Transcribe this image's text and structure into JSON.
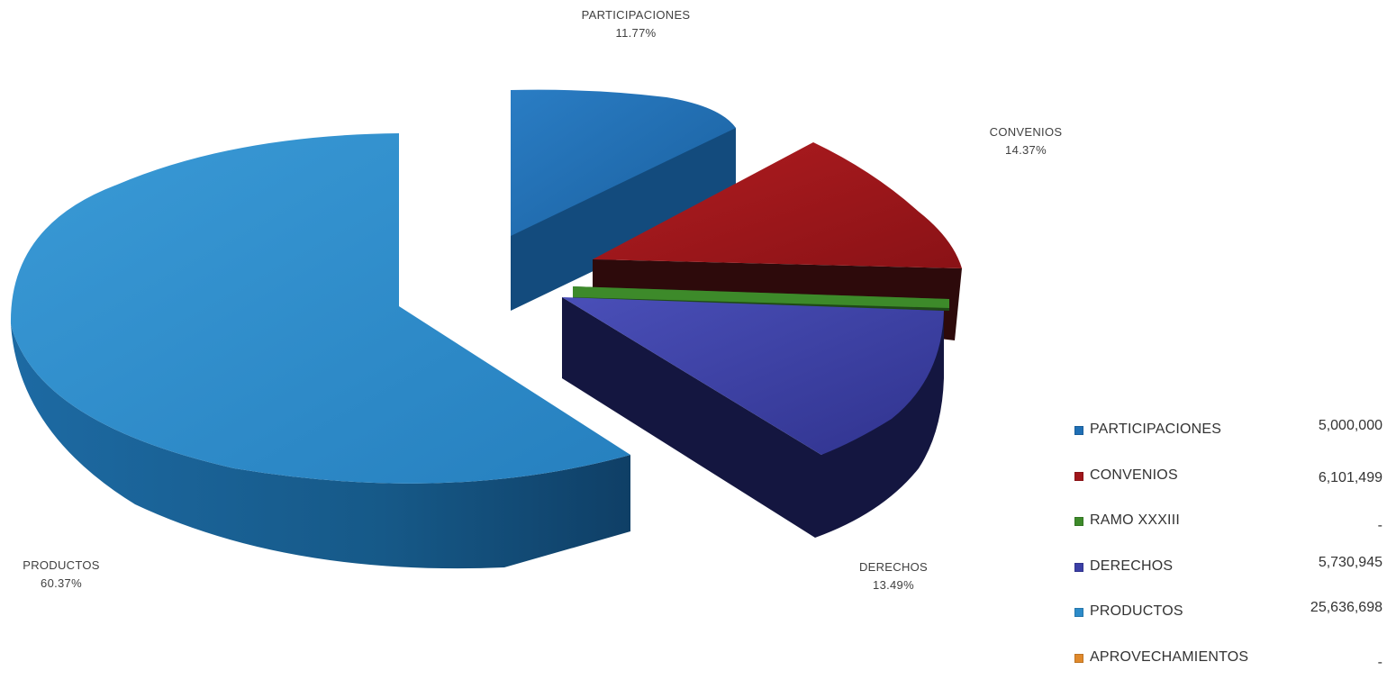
{
  "chart_data": {
    "type": "pie",
    "title": "",
    "slices": [
      {
        "label": "PARTICIPACIONES",
        "percent_label": "11.77%",
        "percent": 11.77,
        "value": 5000000,
        "value_label": "5,000,000",
        "color": "#1f6fb5"
      },
      {
        "label": "CONVENIOS",
        "percent_label": "14.37%",
        "percent": 14.37,
        "value": 6101499,
        "value_label": "6,101,499",
        "color": "#a0161b"
      },
      {
        "label": "RAMO XXXIII",
        "percent_label": "",
        "percent": 0.0,
        "value": null,
        "value_label": "-",
        "color": "#3d8a2a"
      },
      {
        "label": "DERECHOS",
        "percent_label": "13.49%",
        "percent": 13.49,
        "value": 5730945,
        "value_label": "5,730,945",
        "color": "#3b3fa6"
      },
      {
        "label": "PRODUCTOS",
        "percent_label": "60.37%",
        "percent": 60.37,
        "value": 25636698,
        "value_label": "25,636,698",
        "color": "#2d8bc9"
      },
      {
        "label": "APROVECHAMIENTOS",
        "percent_label": "",
        "percent": 0.0,
        "value": null,
        "value_label": "-",
        "color": "#e0892b"
      }
    ],
    "legend_position": "bottom-right",
    "exploded": true,
    "three_d": true
  }
}
